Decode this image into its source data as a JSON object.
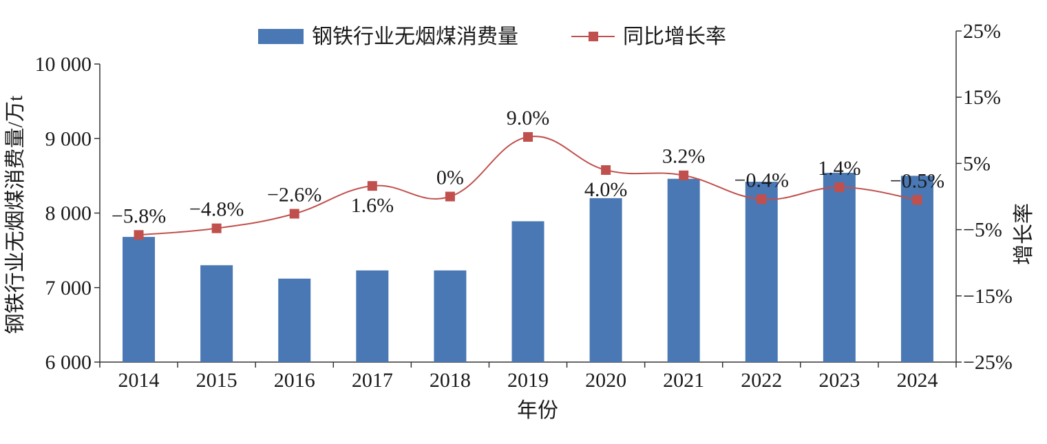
{
  "chart_data": {
    "type": "bar",
    "categories": [
      "2014",
      "2015",
      "2016",
      "2017",
      "2018",
      "2019",
      "2020",
      "2021",
      "2022",
      "2023",
      "2024"
    ],
    "series": [
      {
        "name": "钢铁行业无烟煤消费量",
        "type": "bar",
        "axis": "left",
        "values": [
          7680,
          7300,
          7120,
          7230,
          7230,
          7890,
          8200,
          8460,
          8420,
          8540,
          8500
        ]
      },
      {
        "name": "同比增长率",
        "type": "line",
        "axis": "right",
        "values": [
          -5.8,
          -4.8,
          -2.6,
          1.6,
          0,
          9.0,
          4.0,
          3.2,
          -0.4,
          1.4,
          -0.5
        ],
        "labels": [
          "−5.8%",
          "−4.8%",
          "−2.6%",
          "1.6%",
          "0%",
          "9.0%",
          "4.0%",
          "3.2%",
          "−0.4%",
          "1.4%",
          "−0.5%"
        ]
      }
    ],
    "xlabel": "年份",
    "ylabel": "钢铁行业无烟煤消费量/万t",
    "y2label": "增长率",
    "ylim": [
      6000,
      10000
    ],
    "y2lim": [
      -25,
      25
    ],
    "yticks": [
      "6 000",
      "7 000",
      "8 000",
      "9 000",
      "10 000"
    ],
    "y2ticks": [
      "−25%",
      "−15%",
      "−5%",
      "5%",
      "15%",
      "25%"
    ],
    "legend_position": "top",
    "colors": {
      "bar": "#4a78b4",
      "line": "#c0504d"
    },
    "grid": false
  }
}
